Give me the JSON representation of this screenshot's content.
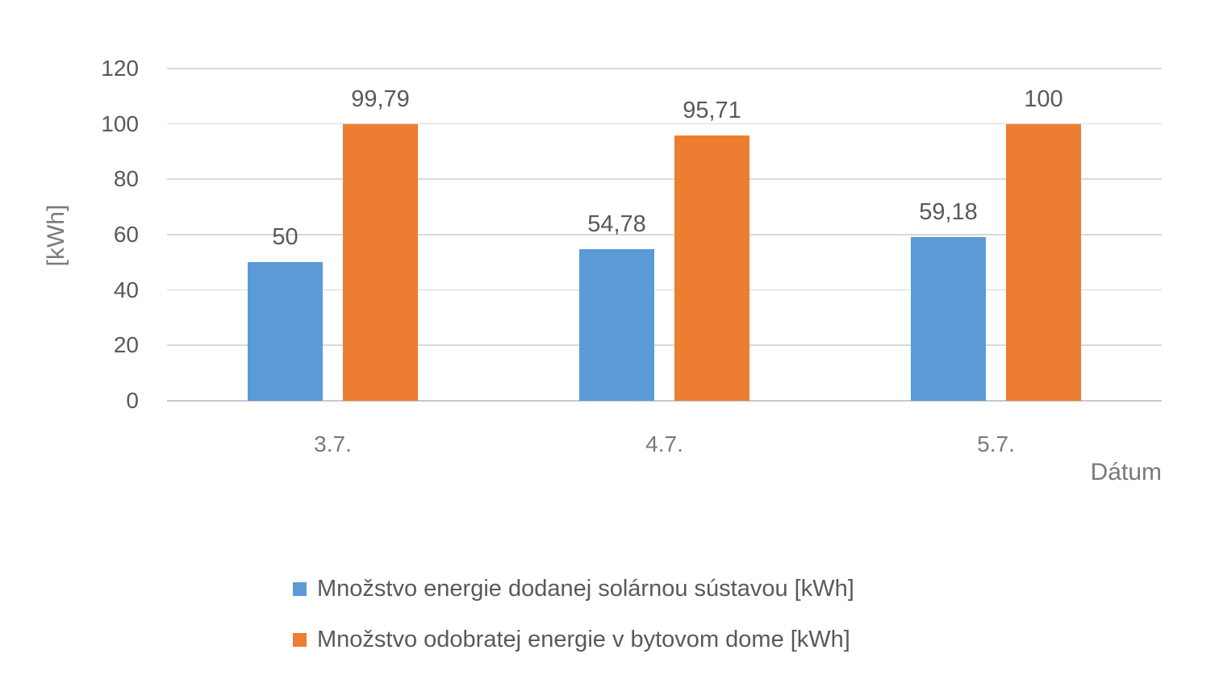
{
  "chart_data": {
    "type": "bar",
    "title": "",
    "categories": [
      "3.7.",
      "4.7.",
      "5.7."
    ],
    "series": [
      {
        "name": "Množstvo energie dodanej solárnou sústavou [kWh]",
        "color": "#5B9BD5",
        "values": [
          50,
          54.78,
          59.18
        ],
        "labels": [
          "50",
          "54,78",
          "59,18"
        ]
      },
      {
        "name": "Množstvo odobratej energie v bytovom dome [kWh]",
        "color": "#ED7D31",
        "values": [
          99.79,
          95.71,
          100
        ],
        "labels": [
          "99,79",
          "95,71",
          "100"
        ]
      }
    ],
    "xlabel": "Dátum",
    "ylabel": "[kWh]",
    "ylim": [
      0,
      120
    ],
    "yticks": [
      0,
      20,
      40,
      60,
      80,
      100,
      120
    ],
    "grid": true,
    "legend_position": "bottom-left",
    "text_color": "#595959",
    "grid_color": "#d9d9d9"
  }
}
